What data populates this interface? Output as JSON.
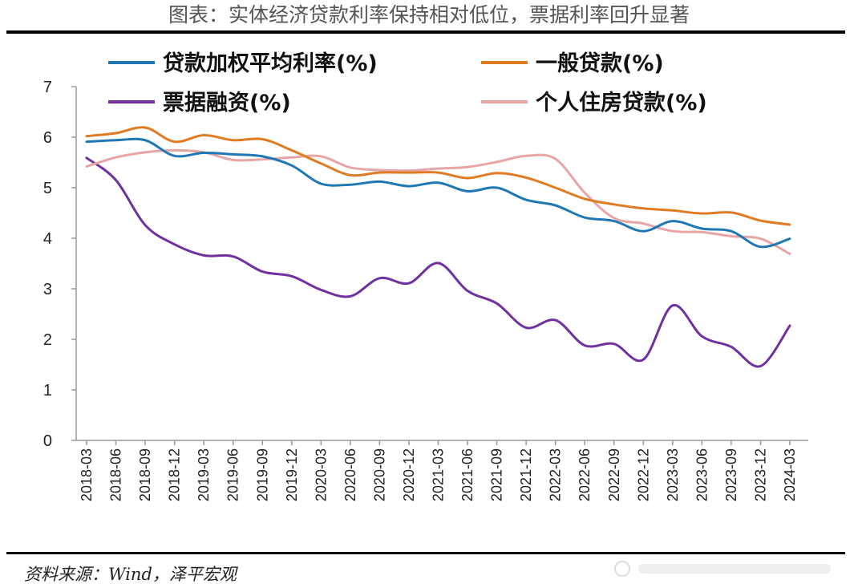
{
  "title": "图表：实体经济贷款利率保持相对低位，票据利率回升显著",
  "source": "资料来源：Wind，泽平宏观",
  "chart_data": {
    "type": "line",
    "title": "图表：实体经济贷款利率保持相对低位，票据利率回升显著",
    "xlabel": "",
    "ylabel": "",
    "ylim": [
      0,
      7
    ],
    "y_ticks": [
      "0",
      "1",
      "2",
      "3",
      "4",
      "5",
      "6",
      "7"
    ],
    "x_tick_labels": [
      "2018-03",
      "2018-06",
      "2018-09",
      "2018-12",
      "2019-03",
      "2019-06",
      "2019-09",
      "2019-12",
      "2020-03",
      "2020-06",
      "2020-09",
      "2020-12",
      "2021-03",
      "2021-06",
      "2021-09",
      "2021-12",
      "2022-03",
      "2022-06",
      "2022-09",
      "2022-12",
      "2023-03",
      "2023-06",
      "2023-09",
      "2023-12",
      "2024-03"
    ],
    "x": [
      "2018-03",
      "2018-06",
      "2018-09",
      "2018-12",
      "2019-03",
      "2019-06",
      "2019-09",
      "2019-12",
      "2020-03",
      "2020-06",
      "2020-09",
      "2020-12",
      "2021-03",
      "2021-06",
      "2021-09",
      "2021-12",
      "2022-03",
      "2022-06",
      "2022-09",
      "2022-12",
      "2023-03",
      "2023-06",
      "2023-09",
      "2023-12",
      "2024-03"
    ],
    "legend_position": "top",
    "grid": false,
    "series": [
      {
        "name": "贷款加权平均利率(%)",
        "color": "#1f77b4",
        "values": [
          5.91,
          5.94,
          5.94,
          5.63,
          5.69,
          5.66,
          5.62,
          5.44,
          5.08,
          5.06,
          5.12,
          5.03,
          5.1,
          4.93,
          5.0,
          4.76,
          4.65,
          4.41,
          4.34,
          4.14,
          4.34,
          4.19,
          4.14,
          3.83,
          3.99
        ]
      },
      {
        "name": "一般贷款(%)",
        "color": "#e07b22",
        "values": [
          6.02,
          6.08,
          6.19,
          5.91,
          6.04,
          5.94,
          5.96,
          5.74,
          5.48,
          5.25,
          5.3,
          5.3,
          5.3,
          5.19,
          5.29,
          5.2,
          5.0,
          4.78,
          4.67,
          4.59,
          4.55,
          4.49,
          4.51,
          4.35,
          4.27
        ]
      },
      {
        "name": "票据融资(%)",
        "color": "#7030a0",
        "values": [
          5.59,
          5.15,
          4.26,
          3.88,
          3.66,
          3.64,
          3.34,
          3.25,
          2.98,
          2.85,
          3.21,
          3.11,
          3.51,
          2.96,
          2.71,
          2.23,
          2.38,
          1.88,
          1.91,
          1.6,
          2.67,
          2.06,
          1.85,
          1.47,
          2.27
        ]
      },
      {
        "name": "个人住房贷款(%)",
        "color": "#e8a5a5",
        "values": [
          5.42,
          5.6,
          5.7,
          5.74,
          5.7,
          5.55,
          5.56,
          5.6,
          5.62,
          5.4,
          5.35,
          5.34,
          5.38,
          5.41,
          5.51,
          5.63,
          5.57,
          4.9,
          4.4,
          4.29,
          4.14,
          4.12,
          4.04,
          3.99,
          3.69
        ]
      }
    ]
  }
}
